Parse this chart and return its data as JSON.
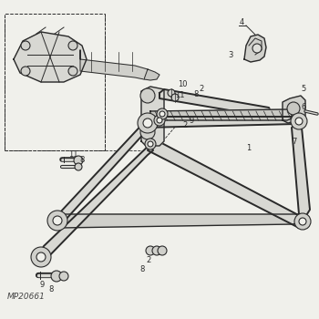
{
  "bg_color": "#f0f0eb",
  "line_color": "#2a2a2a",
  "fill_color": "#e8e8e3",
  "part_label": "MP20661",
  "fig_width": 3.5,
  "fig_height": 3.5,
  "dpi": 100
}
